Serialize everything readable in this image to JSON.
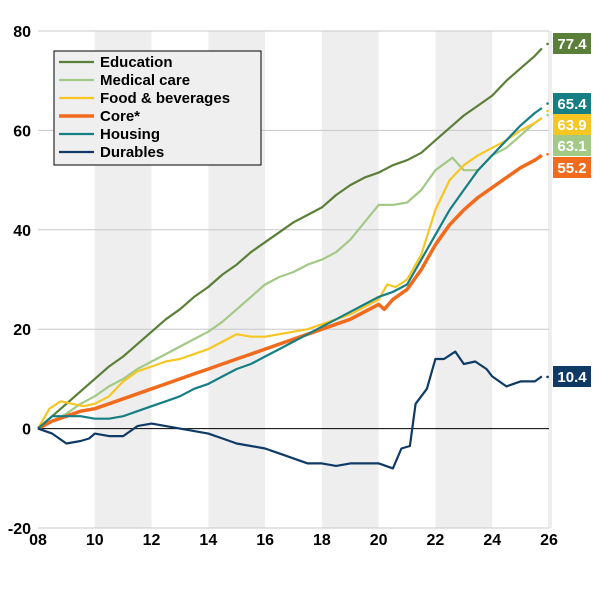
{
  "chart_data": {
    "type": "line",
    "title": "",
    "xlabel": "",
    "ylabel": "",
    "xlim": [
      2008,
      2026
    ],
    "ylim": [
      -20,
      80
    ],
    "grid": true,
    "legend_position": "top-left",
    "x_ticks": [
      {
        "value": 2008,
        "label": "08"
      },
      {
        "value": 2010,
        "label": "10"
      },
      {
        "value": 2012,
        "label": "12"
      },
      {
        "value": 2014,
        "label": "14"
      },
      {
        "value": 2016,
        "label": "16"
      },
      {
        "value": 2018,
        "label": "18"
      },
      {
        "value": 2020,
        "label": "20"
      },
      {
        "value": 2022,
        "label": "22"
      },
      {
        "value": 2024,
        "label": "24"
      },
      {
        "value": 2026,
        "label": "26"
      }
    ],
    "y_ticks": [
      {
        "value": 80,
        "label": "80"
      },
      {
        "value": 60,
        "label": "60"
      },
      {
        "value": 40,
        "label": "40"
      },
      {
        "value": 20,
        "label": "20"
      },
      {
        "value": 0,
        "label": "0"
      },
      {
        "value": -20,
        "label": "-20"
      }
    ],
    "shaded_bands": [
      [
        2010,
        2012
      ],
      [
        2014,
        2016
      ],
      [
        2018,
        2020
      ],
      [
        2022,
        2024
      ]
    ],
    "series": [
      {
        "name": "Education",
        "color": "#5a7f38",
        "end_value": 77.4,
        "label_color": "#5a7f38",
        "points": [
          [
            2008,
            0
          ],
          [
            2008.5,
            2.5
          ],
          [
            2009,
            5
          ],
          [
            2009.5,
            7.5
          ],
          [
            2010,
            10
          ],
          [
            2010.5,
            12.5
          ],
          [
            2011,
            14.5
          ],
          [
            2011.5,
            17
          ],
          [
            2012,
            19.5
          ],
          [
            2012.5,
            22
          ],
          [
            2013,
            24
          ],
          [
            2013.5,
            26.5
          ],
          [
            2014,
            28.5
          ],
          [
            2014.5,
            31
          ],
          [
            2015,
            33
          ],
          [
            2015.5,
            35.5
          ],
          [
            2016,
            37.5
          ],
          [
            2016.5,
            39.5
          ],
          [
            2017,
            41.5
          ],
          [
            2017.5,
            43
          ],
          [
            2018,
            44.5
          ],
          [
            2018.5,
            47
          ],
          [
            2019,
            49
          ],
          [
            2019.5,
            50.5
          ],
          [
            2020,
            51.5
          ],
          [
            2020.5,
            53
          ],
          [
            2021,
            54
          ],
          [
            2021.5,
            55.5
          ],
          [
            2022,
            58
          ],
          [
            2022.5,
            60.5
          ],
          [
            2023,
            63
          ],
          [
            2023.5,
            65
          ],
          [
            2024,
            67
          ],
          [
            2024.5,
            70
          ],
          [
            2025,
            72.5
          ],
          [
            2025.5,
            75
          ],
          [
            2025.75,
            76.5
          ]
        ]
      },
      {
        "name": "Medical care",
        "color": "#a3c986",
        "end_value": 63.1,
        "label_color": "#a3c986",
        "points": [
          [
            2008,
            0
          ],
          [
            2008.5,
            1.5
          ],
          [
            2009,
            3
          ],
          [
            2009.5,
            5
          ],
          [
            2010,
            6.5
          ],
          [
            2010.5,
            8.5
          ],
          [
            2011,
            10
          ],
          [
            2011.5,
            12
          ],
          [
            2012,
            13.5
          ],
          [
            2012.5,
            15
          ],
          [
            2013,
            16.5
          ],
          [
            2013.5,
            18
          ],
          [
            2014,
            19.5
          ],
          [
            2014.5,
            21.5
          ],
          [
            2015,
            24
          ],
          [
            2015.5,
            26.5
          ],
          [
            2016,
            29
          ],
          [
            2016.5,
            30.5
          ],
          [
            2017,
            31.5
          ],
          [
            2017.5,
            33
          ],
          [
            2018,
            34
          ],
          [
            2018.5,
            35.5
          ],
          [
            2019,
            38
          ],
          [
            2019.5,
            41.5
          ],
          [
            2020,
            45
          ],
          [
            2020.5,
            45
          ],
          [
            2021,
            45.5
          ],
          [
            2021.5,
            48
          ],
          [
            2022,
            52
          ],
          [
            2022.6,
            54.5
          ],
          [
            2023,
            52
          ],
          [
            2023.5,
            52
          ],
          [
            2024,
            55
          ],
          [
            2024.5,
            56.5
          ],
          [
            2025,
            59
          ],
          [
            2025.5,
            61.5
          ],
          [
            2025.75,
            62.5
          ]
        ]
      },
      {
        "name": "Food & beverages",
        "color": "#f6c623",
        "end_value": 63.9,
        "label_color": "#f6c623",
        "points": [
          [
            2008,
            0
          ],
          [
            2008.4,
            4
          ],
          [
            2008.8,
            5.5
          ],
          [
            2009.2,
            5
          ],
          [
            2009.6,
            4.5
          ],
          [
            2010,
            5
          ],
          [
            2010.5,
            6.5
          ],
          [
            2011,
            9.5
          ],
          [
            2011.5,
            11.5
          ],
          [
            2012,
            12.5
          ],
          [
            2012.5,
            13.5
          ],
          [
            2013,
            14
          ],
          [
            2013.5,
            15
          ],
          [
            2014,
            16
          ],
          [
            2014.5,
            17.5
          ],
          [
            2015,
            19
          ],
          [
            2015.5,
            18.5
          ],
          [
            2016,
            18.5
          ],
          [
            2016.5,
            19
          ],
          [
            2017,
            19.5
          ],
          [
            2017.5,
            20
          ],
          [
            2018,
            21
          ],
          [
            2018.5,
            22
          ],
          [
            2019,
            23
          ],
          [
            2019.5,
            24.5
          ],
          [
            2020,
            26
          ],
          [
            2020.3,
            29
          ],
          [
            2020.6,
            28.5
          ],
          [
            2021,
            30
          ],
          [
            2021.5,
            35
          ],
          [
            2022,
            44
          ],
          [
            2022.5,
            50
          ],
          [
            2023,
            53
          ],
          [
            2023.5,
            55
          ],
          [
            2024,
            56.5
          ],
          [
            2024.5,
            58
          ],
          [
            2025,
            60
          ],
          [
            2025.5,
            61.5
          ],
          [
            2025.75,
            62.5
          ]
        ]
      },
      {
        "name": "Core*",
        "color": "#f26a1b",
        "end_value": 55.2,
        "label_color": "#f26a1b",
        "points": [
          [
            2008,
            0
          ],
          [
            2008.5,
            1.5
          ],
          [
            2009,
            2.5
          ],
          [
            2009.5,
            3.5
          ],
          [
            2010,
            4
          ],
          [
            2010.5,
            5
          ],
          [
            2011,
            6
          ],
          [
            2011.5,
            7
          ],
          [
            2012,
            8
          ],
          [
            2012.5,
            9
          ],
          [
            2013,
            10
          ],
          [
            2013.5,
            11
          ],
          [
            2014,
            12
          ],
          [
            2014.5,
            13
          ],
          [
            2015,
            14
          ],
          [
            2015.5,
            15
          ],
          [
            2016,
            16
          ],
          [
            2016.5,
            17
          ],
          [
            2017,
            18
          ],
          [
            2017.5,
            19
          ],
          [
            2018,
            20
          ],
          [
            2018.5,
            21
          ],
          [
            2019,
            22
          ],
          [
            2019.5,
            23.5
          ],
          [
            2020,
            25
          ],
          [
            2020.2,
            24
          ],
          [
            2020.5,
            26
          ],
          [
            2021,
            28
          ],
          [
            2021.5,
            32
          ],
          [
            2022,
            37
          ],
          [
            2022.5,
            41
          ],
          [
            2023,
            44
          ],
          [
            2023.5,
            46.5
          ],
          [
            2024,
            48.5
          ],
          [
            2024.5,
            50.5
          ],
          [
            2025,
            52.5
          ],
          [
            2025.5,
            54
          ],
          [
            2025.75,
            55
          ]
        ]
      },
      {
        "name": "Housing",
        "color": "#167f84",
        "end_value": 65.4,
        "label_color": "#167f84",
        "points": [
          [
            2008,
            0
          ],
          [
            2008.5,
            2.5
          ],
          [
            2009,
            2.5
          ],
          [
            2009.5,
            2.5
          ],
          [
            2010,
            2
          ],
          [
            2010.5,
            2
          ],
          [
            2011,
            2.5
          ],
          [
            2011.5,
            3.5
          ],
          [
            2012,
            4.5
          ],
          [
            2012.5,
            5.5
          ],
          [
            2013,
            6.5
          ],
          [
            2013.5,
            8
          ],
          [
            2014,
            9
          ],
          [
            2014.5,
            10.5
          ],
          [
            2015,
            12
          ],
          [
            2015.5,
            13
          ],
          [
            2016,
            14.5
          ],
          [
            2016.5,
            16
          ],
          [
            2017,
            17.5
          ],
          [
            2017.5,
            19
          ],
          [
            2018,
            20.5
          ],
          [
            2018.5,
            22
          ],
          [
            2019,
            23.5
          ],
          [
            2019.5,
            25
          ],
          [
            2020,
            26.5
          ],
          [
            2020.5,
            27.5
          ],
          [
            2021,
            29
          ],
          [
            2021.5,
            34
          ],
          [
            2022,
            39
          ],
          [
            2022.5,
            44
          ],
          [
            2023,
            48
          ],
          [
            2023.5,
            52
          ],
          [
            2024,
            55
          ],
          [
            2024.5,
            58
          ],
          [
            2025,
            61
          ],
          [
            2025.5,
            63.5
          ],
          [
            2025.75,
            64.5
          ]
        ]
      },
      {
        "name": "Durables",
        "color": "#0f3a66",
        "end_value": 10.4,
        "label_color": "#0f3a66",
        "points": [
          [
            2008,
            0
          ],
          [
            2008.5,
            -1
          ],
          [
            2009,
            -3
          ],
          [
            2009.5,
            -2.5
          ],
          [
            2009.8,
            -2
          ],
          [
            2010,
            -1
          ],
          [
            2010.5,
            -1.5
          ],
          [
            2011,
            -1.5
          ],
          [
            2011.5,
            0.5
          ],
          [
            2012,
            1
          ],
          [
            2012.5,
            0.5
          ],
          [
            2013,
            0
          ],
          [
            2013.5,
            -0.5
          ],
          [
            2014,
            -1
          ],
          [
            2014.5,
            -2
          ],
          [
            2015,
            -3
          ],
          [
            2015.5,
            -3.5
          ],
          [
            2016,
            -4
          ],
          [
            2016.5,
            -5
          ],
          [
            2017,
            -6
          ],
          [
            2017.5,
            -7
          ],
          [
            2018,
            -7
          ],
          [
            2018.5,
            -7.5
          ],
          [
            2019,
            -7
          ],
          [
            2019.5,
            -7
          ],
          [
            2020,
            -7
          ],
          [
            2020.5,
            -8
          ],
          [
            2020.8,
            -4
          ],
          [
            2021.1,
            -3.5
          ],
          [
            2021.3,
            5
          ],
          [
            2021.7,
            8
          ],
          [
            2022,
            14
          ],
          [
            2022.3,
            14
          ],
          [
            2022.7,
            15.5
          ],
          [
            2023,
            13
          ],
          [
            2023.4,
            13.5
          ],
          [
            2023.8,
            12
          ],
          [
            2024,
            10.5
          ],
          [
            2024.5,
            8.5
          ],
          [
            2025,
            9.5
          ],
          [
            2025.5,
            9.5
          ],
          [
            2025.75,
            10.5
          ]
        ]
      }
    ],
    "end_labels": [
      "77.4",
      "65.4",
      "63.9",
      "63.1",
      "55.2",
      "10.4"
    ]
  },
  "legend": {
    "items": [
      {
        "label": "Education",
        "color": "#5a7f38"
      },
      {
        "label": "Medical care",
        "color": "#a3c986"
      },
      {
        "label": "Food & beverages",
        "color": "#f6c623"
      },
      {
        "label": "Core*",
        "color": "#f26a1b"
      },
      {
        "label": "Housing",
        "color": "#167f84"
      },
      {
        "label": "Durables",
        "color": "#0f3a66"
      }
    ]
  }
}
